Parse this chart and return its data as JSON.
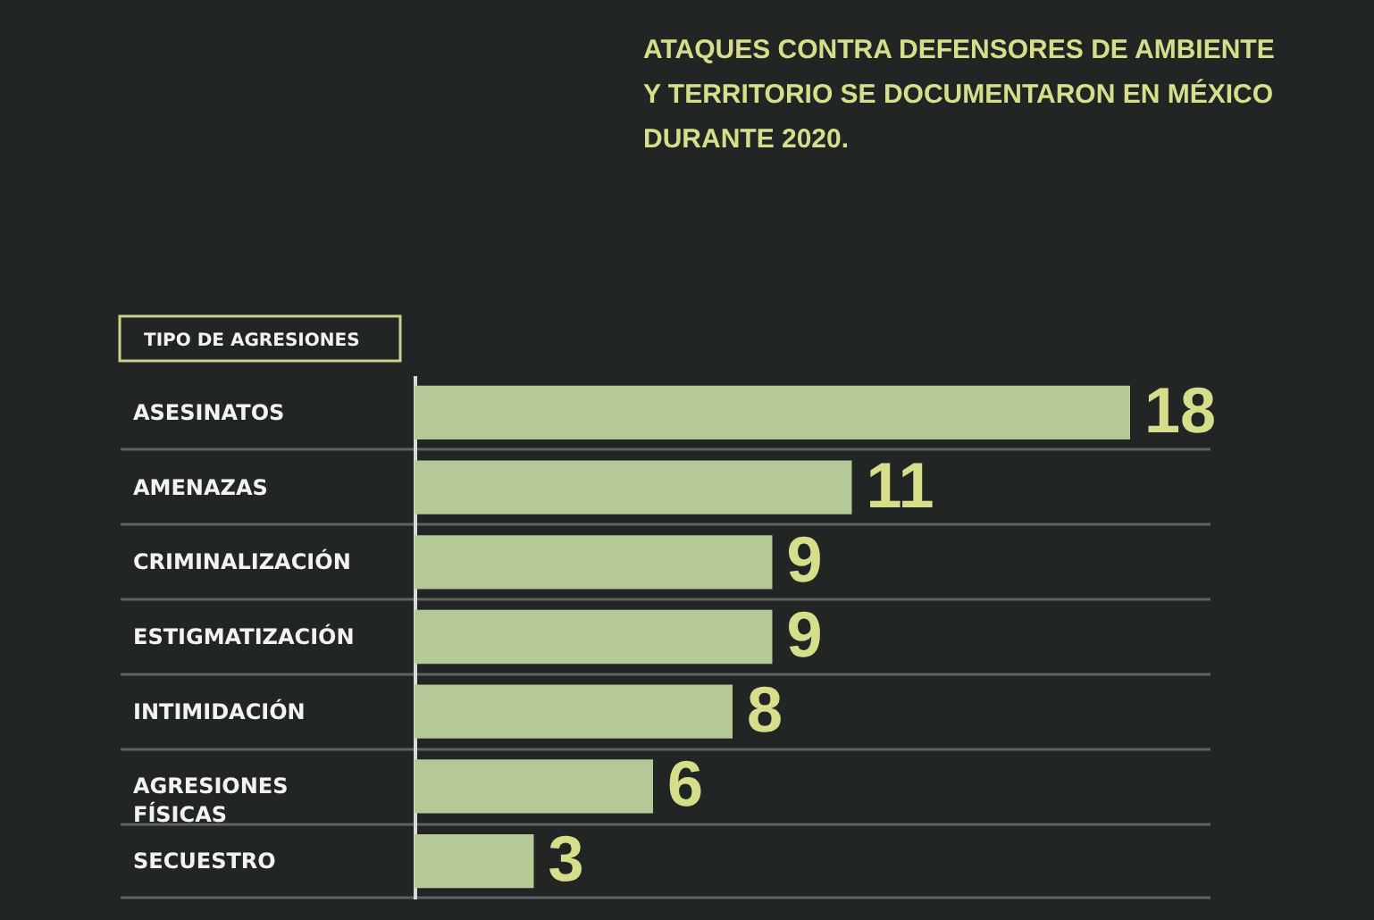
{
  "chart_data": {
    "type": "bar",
    "orientation": "horizontal",
    "title": "ATAQUES CONTRA DEFENSORES DE AMBIENTE Y TERRITORIO SE DOCUMENTARON EN MÉXICO DURANTE 2020.",
    "ylabel": "TIPO DE AGRESIONES",
    "categories": [
      "ASESINATOS",
      "AMENAZAS",
      "CRIMINALIZACIÓN",
      "ESTIGMATIZACIÓN",
      "INTIMIDACIÓN",
      "AGRESIONES FÍSICAS",
      "SECUESTRO"
    ],
    "values": [
      18,
      11,
      9,
      9,
      8,
      6,
      3
    ],
    "color": "#b4c996",
    "xlim": [
      0,
      20
    ],
    "data_labels": true,
    "tick_labels": "y",
    "grid": "y"
  }
}
